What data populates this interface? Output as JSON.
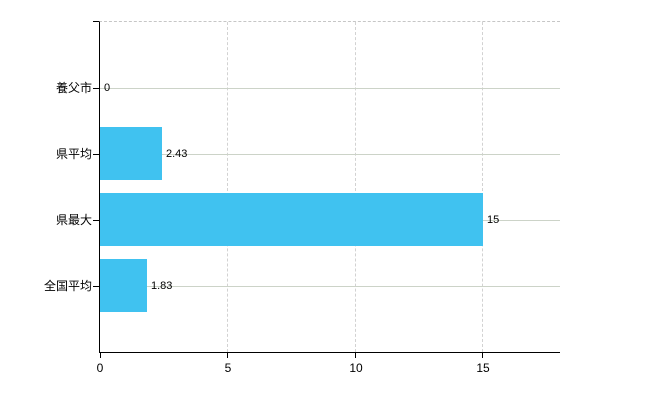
{
  "chart_data": {
    "type": "bar",
    "orientation": "horizontal",
    "title": "",
    "xlabel": "",
    "ylabel": "",
    "categories": [
      "養父市",
      "県平均",
      "県最大",
      "全国平均"
    ],
    "values": [
      0,
      2.43,
      15,
      1.83
    ],
    "value_labels": [
      "0",
      "2.43",
      "15",
      "1.83"
    ],
    "xlim": [
      0,
      18
    ],
    "x_ticks": [
      0,
      5,
      10,
      15
    ],
    "x_tick_labels": [
      "0",
      "5",
      "10",
      "15"
    ],
    "grid": true,
    "legend": false,
    "bar_color": "#40c2f0",
    "axis_color": "#000000",
    "hgrid_color": "#ccd3c8",
    "vgrid_color": "#d2d2d2",
    "top_border_color": "#c6c6c6",
    "background_color": "#ffffff"
  }
}
